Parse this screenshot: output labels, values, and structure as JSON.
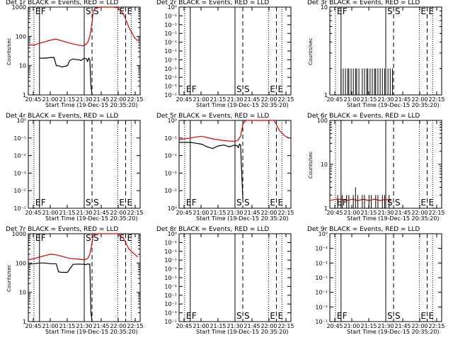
{
  "chart_data": [
    {
      "type": "line",
      "title": "Det 1r BLACK = Events, RED = LLD",
      "xlabel": "Start Time (19-Dec-15 20:35:20)",
      "ylabel": "Counts/sec",
      "x_ticks": [
        "20:45",
        "21:00",
        "21:15",
        "21:30",
        "21:45",
        "22:00",
        "22:15"
      ],
      "y_ticks": [
        "1",
        "10",
        "100",
        "1000"
      ],
      "ylim": [
        1,
        1000
      ],
      "log_y": true,
      "xlim_min": [
        5,
        105
      ],
      "markers": [
        {
          "label": "E",
          "t": 10,
          "style": "dotted"
        },
        {
          "label": "F",
          "t": 15,
          "style": "solid"
        },
        {
          "label": "S",
          "t": 55,
          "style": "solid"
        },
        {
          "label": "S",
          "t": 62,
          "style": "dashed"
        },
        {
          "label": "E",
          "t": 85,
          "style": "dotted"
        },
        {
          "label": "E",
          "t": 92,
          "style": "dashed"
        },
        {
          "label": "",
          "t": 97,
          "style": "dotted"
        }
      ],
      "series": [
        {
          "color": "#e00000",
          "x": [
            5,
            10,
            15,
            20,
            25,
            30,
            35,
            40,
            45,
            50,
            54,
            56,
            58,
            60,
            62,
            63,
            65,
            70,
            75,
            80,
            85,
            90,
            95,
            100,
            103
          ],
          "y": [
            52,
            50,
            58,
            65,
            75,
            80,
            70,
            62,
            55,
            50,
            48,
            52,
            60,
            100,
            300,
            700,
            950,
            1000,
            1000,
            1000,
            950,
            600,
            200,
            90,
            70
          ]
        },
        {
          "color": "#000000",
          "x": [
            15,
            20,
            25,
            28,
            30,
            32,
            35,
            40,
            42,
            45,
            48,
            50,
            52,
            55,
            57,
            58,
            59,
            60,
            61,
            62
          ],
          "y": [
            18,
            18,
            19,
            19,
            10,
            10,
            9,
            10,
            15,
            17,
            16,
            16,
            15,
            18,
            17,
            14,
            18,
            16,
            2,
            1
          ]
        }
      ]
    },
    {
      "type": "line",
      "title": "Det 2r BLACK = Events, RED = LLD",
      "xlabel": "Start Time (19-Dec-15 20:35:20)",
      "ylabel": "",
      "x_ticks": [
        "20:45",
        "21:00",
        "21:15",
        "21:30",
        "21:45",
        "22:00",
        "22:15"
      ],
      "y_ticks": [
        "10⁻¹",
        "10⁻¹",
        "10⁻¹",
        "10⁻¹",
        "10⁻¹",
        "10⁻¹",
        "10⁻¹",
        "10⁻¹",
        "10⁻¹",
        "10⁻¹",
        "10⁰"
      ],
      "ylim": [
        0,
        1
      ],
      "log_y": false,
      "xlim_min": [
        5,
        105
      ],
      "markers": [
        {
          "label": "E",
          "t": 10,
          "style": "dotted"
        },
        {
          "label": "F",
          "t": 15,
          "style": "solid"
        },
        {
          "label": "S",
          "t": 55,
          "style": "solid"
        },
        {
          "label": "S",
          "t": 62,
          "style": "dashed"
        },
        {
          "label": "E",
          "t": 85,
          "style": "dotted"
        },
        {
          "label": "E",
          "t": 92,
          "style": "dashed"
        },
        {
          "label": "",
          "t": 97,
          "style": "dotted"
        }
      ],
      "series": []
    },
    {
      "type": "line",
      "title": "Det 3r BLACK = Events, RED = LLD",
      "xlabel": "Start Time (19-Dec-15 20:35:20)",
      "ylabel": "Counts/sec",
      "x_ticks": [
        "20:45",
        "21:00",
        "21:15",
        "21:30",
        "21:45",
        "22:00",
        "22:15"
      ],
      "y_ticks": [
        "1",
        "10"
      ],
      "ylim": [
        1,
        10
      ],
      "log_y": true,
      "xlim_min": [
        5,
        105
      ],
      "markers": [
        {
          "label": "E",
          "t": 10,
          "style": "dotted"
        },
        {
          "label": "F",
          "t": 15,
          "style": "solid"
        },
        {
          "label": "S",
          "t": 55,
          "style": "solid"
        },
        {
          "label": "S",
          "t": 62,
          "style": "dashed"
        },
        {
          "label": "E",
          "t": 85,
          "style": "dotted"
        },
        {
          "label": "E",
          "t": 92,
          "style": "dashed"
        },
        {
          "label": "",
          "t": 97,
          "style": "dotted"
        }
      ],
      "series": [
        {
          "color": "#000000",
          "spikes": true,
          "x": [
            15,
            16,
            17,
            18,
            19,
            20,
            21,
            22,
            23,
            24,
            25,
            26,
            27,
            28,
            29,
            30,
            31,
            32,
            33,
            34,
            35,
            36,
            37,
            38,
            39,
            40,
            41,
            42,
            43,
            44,
            45,
            46,
            47,
            48,
            49,
            50,
            51,
            52,
            53,
            54,
            55,
            56,
            57,
            58,
            59,
            60,
            61
          ],
          "y": [
            2,
            1,
            2,
            1,
            2,
            1,
            2,
            2,
            1,
            2,
            1,
            2,
            1,
            2,
            2,
            1,
            2,
            1,
            1,
            2,
            1,
            2,
            1,
            2,
            2,
            1,
            2,
            1,
            2,
            1,
            2,
            2,
            1,
            2,
            1,
            2,
            1,
            2,
            1,
            2,
            2,
            1,
            2,
            1,
            2,
            1,
            2
          ]
        }
      ]
    },
    {
      "type": "line",
      "title": "Det 4r BLACK = Events, RED = LLD",
      "xlabel": "Start Time (19-Dec-15 20:35:20)",
      "ylabel": "",
      "x_ticks": [
        "20:45",
        "21:00",
        "21:15",
        "21:30",
        "21:45",
        "22:00",
        "22:15"
      ],
      "y_ticks": [
        "10⁻¹",
        "10⁻¹",
        "10⁻¹",
        "10⁻¹",
        "10⁻¹",
        "10⁰"
      ],
      "ylim": [
        0,
        1
      ],
      "log_y": false,
      "xlim_min": [
        5,
        105
      ],
      "markers": [
        {
          "label": "E",
          "t": 10,
          "style": "dotted"
        },
        {
          "label": "F",
          "t": 15,
          "style": "solid"
        },
        {
          "label": "S",
          "t": 55,
          "style": "solid"
        },
        {
          "label": "S",
          "t": 62,
          "style": "dashed"
        },
        {
          "label": "E",
          "t": 85,
          "style": "dotted"
        },
        {
          "label": "E",
          "t": 92,
          "style": "dashed"
        },
        {
          "label": "",
          "t": 97,
          "style": "dotted"
        }
      ],
      "series": []
    },
    {
      "type": "line",
      "title": "Det 5r BLACK = Events, RED = LLD",
      "xlabel": "Start Time (19-Dec-15 20:35:20)",
      "ylabel": "",
      "x_ticks": [
        "20:45",
        "21:00",
        "21:15",
        "21:30",
        "21:45",
        "22:00",
        "22:15"
      ],
      "y_ticks": [
        "10⁰",
        "10⁻¹",
        "10⁻¹",
        "10⁻¹",
        "10⁻¹",
        "10³"
      ],
      "ylim": [
        0,
        1
      ],
      "log_y": false,
      "xlim_min": [
        5,
        105
      ],
      "markers": [
        {
          "label": "E",
          "t": 10,
          "style": "dotted"
        },
        {
          "label": "F",
          "t": 15,
          "style": "solid"
        },
        {
          "label": "S",
          "t": 55,
          "style": "solid"
        },
        {
          "label": "S",
          "t": 62,
          "style": "dashed"
        },
        {
          "label": "E",
          "t": 85,
          "style": "dotted"
        },
        {
          "label": "E",
          "t": 92,
          "style": "dashed"
        },
        {
          "label": "",
          "t": 97,
          "style": "dotted"
        }
      ],
      "series": [
        {
          "color": "#e00000",
          "x": [
            5,
            15,
            25,
            35,
            45,
            55,
            58,
            60,
            62,
            63,
            65,
            70,
            80,
            90,
            95,
            100,
            103
          ],
          "y": [
            0.78,
            0.8,
            0.82,
            0.79,
            0.77,
            0.76,
            0.78,
            0.82,
            0.95,
            0.98,
            1.0,
            1.0,
            1.0,
            1.0,
            0.88,
            0.82,
            0.8
          ]
        },
        {
          "color": "#000000",
          "x": [
            5,
            15,
            20,
            25,
            30,
            35,
            40,
            45,
            50,
            55,
            57,
            58,
            59,
            60,
            61,
            62
          ],
          "y": [
            0.75,
            0.75,
            0.74,
            0.73,
            0.7,
            0.68,
            0.71,
            0.72,
            0.7,
            0.72,
            0.71,
            0.69,
            0.73,
            0.72,
            0.4,
            0.1
          ]
        }
      ]
    },
    {
      "type": "line",
      "title": "Det 6r BLACK = Events, RED = LLD",
      "xlabel": "Start Time (19-Dec-15 20:35:20)",
      "ylabel": "Counts/sec",
      "x_ticks": [
        "20:45",
        "21:00",
        "21:15",
        "21:30",
        "21:45",
        "22:00",
        "22:15"
      ],
      "y_ticks": [
        "1",
        "10",
        "100"
      ],
      "ylim": [
        1,
        100
      ],
      "log_y": true,
      "xlim_min": [
        5,
        105
      ],
      "markers": [
        {
          "label": "E",
          "t": 10,
          "style": "dotted"
        },
        {
          "label": "F",
          "t": 15,
          "style": "solid"
        },
        {
          "label": "S",
          "t": 55,
          "style": "solid"
        },
        {
          "label": "S",
          "t": 62,
          "style": "dashed"
        },
        {
          "label": "E",
          "t": 85,
          "style": "dotted"
        },
        {
          "label": "E",
          "t": 92,
          "style": "dashed"
        },
        {
          "label": "",
          "t": 97,
          "style": "dotted"
        }
      ],
      "series": [
        {
          "color": "#e00000",
          "x": [
            5,
            10,
            15,
            20,
            25,
            30,
            35,
            40,
            45,
            50,
            55,
            60
          ],
          "y": [
            1.5,
            1.6,
            1.6,
            1.5,
            1.6,
            1.5,
            1.6,
            1.5,
            1.6,
            1.5,
            1.6,
            1.5
          ]
        },
        {
          "color": "#000000",
          "spikes": true,
          "x": [
            12,
            14,
            16,
            18,
            20,
            22,
            24,
            26,
            28,
            30,
            32,
            34,
            36,
            38,
            40,
            42,
            44,
            46,
            48,
            50,
            52,
            54,
            56,
            58,
            60
          ],
          "y": [
            2,
            1,
            2,
            1,
            2,
            2,
            1,
            2,
            3,
            2,
            1,
            2,
            2,
            1,
            2,
            2,
            1,
            2,
            2,
            1,
            2,
            2,
            1,
            2,
            1
          ]
        }
      ]
    },
    {
      "type": "line",
      "title": "Det 7r BLACK = Events, RED = LLD",
      "xlabel": "Start Time (19-Dec-15 20:35:20)",
      "ylabel": "Counts/sec",
      "x_ticks": [
        "20:45",
        "21:00",
        "21:15",
        "21:30",
        "21:45",
        "22:00",
        "22:15"
      ],
      "y_ticks": [
        "1",
        "10",
        "100",
        "1000"
      ],
      "ylim": [
        1,
        1000
      ],
      "log_y": true,
      "xlim_min": [
        5,
        105
      ],
      "markers": [
        {
          "label": "E",
          "t": 10,
          "style": "dotted"
        },
        {
          "label": "F",
          "t": 15,
          "style": "solid"
        },
        {
          "label": "S",
          "t": 55,
          "style": "solid"
        },
        {
          "label": "S",
          "t": 62,
          "style": "dashed"
        },
        {
          "label": "E",
          "t": 85,
          "style": "dotted"
        },
        {
          "label": "E",
          "t": 92,
          "style": "dashed"
        },
        {
          "label": "",
          "t": 97,
          "style": "dotted"
        }
      ],
      "series": [
        {
          "color": "#e00000",
          "x": [
            5,
            10,
            15,
            20,
            25,
            30,
            35,
            40,
            45,
            50,
            55,
            58,
            60,
            62,
            63,
            65,
            70,
            80,
            85,
            90,
            95,
            100,
            103
          ],
          "y": [
            130,
            140,
            160,
            180,
            200,
            190,
            170,
            150,
            140,
            135,
            130,
            140,
            200,
            500,
            900,
            1000,
            1000,
            1000,
            1000,
            700,
            300,
            200,
            160
          ]
        },
        {
          "color": "#000000",
          "x": [
            5,
            10,
            15,
            20,
            25,
            30,
            32,
            35,
            40,
            45,
            50,
            55,
            57,
            58,
            59,
            60,
            61,
            62
          ],
          "y": [
            90,
            95,
            100,
            100,
            95,
            95,
            50,
            48,
            48,
            90,
            92,
            90,
            88,
            95,
            90,
            92,
            2,
            1
          ]
        }
      ]
    },
    {
      "type": "line",
      "title": "Det 8r BLACK = Events, RED = LLD",
      "xlabel": "Start Time (19-Dec-15 20:35:20)",
      "ylabel": "",
      "x_ticks": [
        "20:45",
        "21:00",
        "21:15",
        "21:30",
        "21:45",
        "22:00",
        "22:15"
      ],
      "y_ticks": [
        "10⁻¹",
        "10⁻¹",
        "10⁻¹",
        "10⁻¹",
        "10⁻¹",
        "10⁻¹",
        "10⁻¹",
        "10⁻¹",
        "10⁻¹",
        "10⁻¹",
        "10⁰"
      ],
      "ylim": [
        0,
        1
      ],
      "log_y": false,
      "xlim_min": [
        5,
        105
      ],
      "markers": [
        {
          "label": "E",
          "t": 10,
          "style": "dotted"
        },
        {
          "label": "F",
          "t": 15,
          "style": "solid"
        },
        {
          "label": "S",
          "t": 55,
          "style": "solid"
        },
        {
          "label": "S",
          "t": 62,
          "style": "dashed"
        },
        {
          "label": "E",
          "t": 85,
          "style": "dotted"
        },
        {
          "label": "E",
          "t": 92,
          "style": "dashed"
        },
        {
          "label": "",
          "t": 97,
          "style": "dotted"
        }
      ],
      "series": []
    },
    {
      "type": "line",
      "title": "Det 9r BLACK = Events, RED = LLD",
      "xlabel": "Start Time (19-Dec-15 20:35:20)",
      "ylabel": "",
      "x_ticks": [
        "20:45",
        "21:00",
        "21:15",
        "21:30",
        "21:45",
        "22:00",
        "22:15"
      ],
      "y_ticks": [
        "10⁻¹",
        "10⁻¹",
        "10⁻¹",
        "10⁻¹",
        "10⁻¹",
        "10⁻¹",
        "10⁰"
      ],
      "ylim": [
        0,
        1
      ],
      "log_y": false,
      "xlim_min": [
        5,
        105
      ],
      "markers": [
        {
          "label": "E",
          "t": 10,
          "style": "dotted"
        },
        {
          "label": "F",
          "t": 15,
          "style": "solid"
        },
        {
          "label": "S",
          "t": 55,
          "style": "solid"
        },
        {
          "label": "S",
          "t": 62,
          "style": "dashed"
        },
        {
          "label": "E",
          "t": 85,
          "style": "dotted"
        },
        {
          "label": "E",
          "t": 92,
          "style": "dashed"
        },
        {
          "label": "",
          "t": 97,
          "style": "dotted"
        }
      ],
      "series": []
    }
  ]
}
